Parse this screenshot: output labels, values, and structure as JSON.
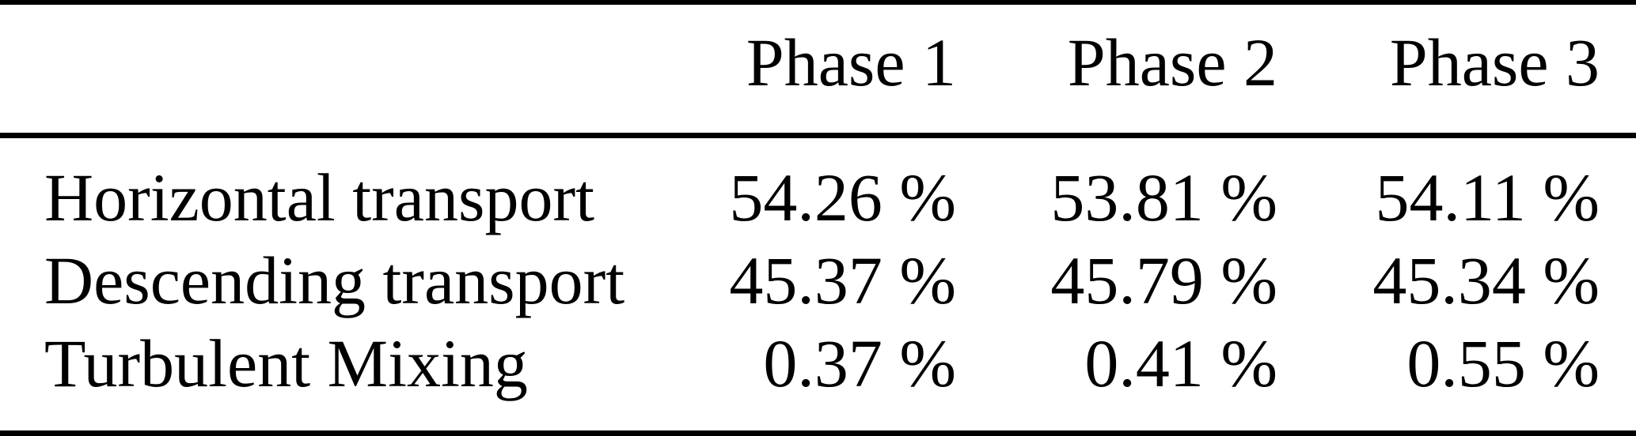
{
  "table": {
    "header": {
      "stub": "",
      "columns": [
        "Phase 1",
        "Phase 2",
        "Phase 3"
      ]
    },
    "rows": [
      {
        "label": "Horizontal transport",
        "values": [
          "54.26 %",
          "53.81 %",
          "54.11 %"
        ]
      },
      {
        "label": "Descending transport",
        "values": [
          "45.37 %",
          "45.79 %",
          "45.34 %"
        ]
      },
      {
        "label": "Turbulent Mixing",
        "values": [
          "0.37 %",
          "0.41 %",
          "0.55 %"
        ]
      }
    ]
  },
  "colors": {
    "text": "#000000",
    "rule": "#000000",
    "background": "#ffffff"
  },
  "chart_data": {
    "type": "table",
    "title": "",
    "categories": [
      "Phase 1",
      "Phase 2",
      "Phase 3"
    ],
    "series": [
      {
        "name": "Horizontal transport",
        "values": [
          54.26,
          53.81,
          54.11
        ]
      },
      {
        "name": "Descending transport",
        "values": [
          45.37,
          45.79,
          45.34
        ]
      },
      {
        "name": "Turbulent Mixing",
        "values": [
          0.37,
          0.41,
          0.55
        ]
      }
    ],
    "unit": "%"
  }
}
